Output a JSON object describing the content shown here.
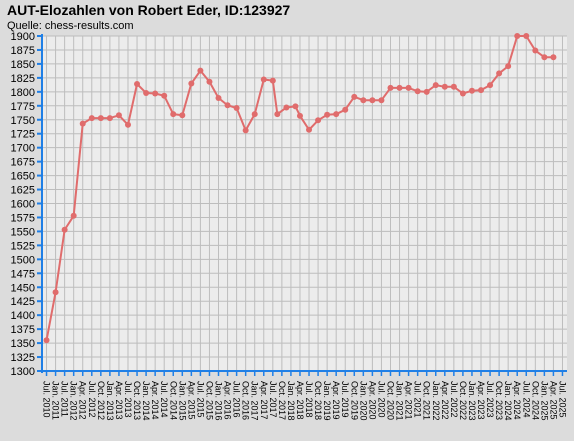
{
  "title": "AUT-Elozahlen von Robert Eder, ID:123927",
  "subtitle": "Quelle: chess-results.com",
  "colors": {
    "background": "#dcdcdc",
    "plot_background": "#ececec",
    "grid": "#bdbdbd",
    "axis": "#1f7fe6",
    "series": "#e06c6c"
  },
  "chart_data": {
    "type": "line",
    "title": "AUT-Elozahlen von Robert Eder, ID:123927",
    "xlabel": "",
    "ylabel": "",
    "ylim": [
      1300,
      1900
    ],
    "yticks": [
      1300,
      1325,
      1350,
      1375,
      1400,
      1425,
      1450,
      1475,
      1500,
      1525,
      1550,
      1575,
      1600,
      1625,
      1650,
      1675,
      1700,
      1725,
      1750,
      1775,
      1800,
      1825,
      1850,
      1875,
      1900
    ],
    "grid": true,
    "categories": [
      "Jul. 2010",
      "Jan. 2011",
      "Jul. 2011",
      "Jan. 2012",
      "Apr. 2012",
      "Jul. 2012",
      "Oct. 2012",
      "Jan. 2013",
      "Apr. 2013",
      "Jul. 2013",
      "Oct. 2013",
      "Jan. 2014",
      "Apr. 2014",
      "Jul. 2014",
      "Oct. 2014",
      "Jan. 2015",
      "Apr. 2015",
      "Jul. 2015",
      "Oct. 2015",
      "Jan. 2016",
      "Apr. 2016",
      "Jul. 2016",
      "Oct. 2016",
      "Jan. 2017",
      "Apr. 2017",
      "Jul. 2017",
      "Oct. 2017",
      "Jan. 2018",
      "Apr. 2018",
      "Jul. 2018",
      "Oct. 2018",
      "Jan. 2019",
      "Apr. 2019",
      "Jul. 2019",
      "Oct. 2019",
      "Jan. 2020",
      "Apr. 2020",
      "Jul. 2020",
      "Oct. 2020",
      "Jan. 2021",
      "Apr. 2021",
      "Jul. 2021",
      "Oct. 2021",
      "Jan. 2022",
      "Apr. 2022",
      "Jul. 2022",
      "Oct. 2022",
      "Jan. 2023",
      "Apr. 2023",
      "Jul. 2023",
      "Oct. 2023",
      "Jan. 2024",
      "Apr. 2024",
      "Jul. 2024",
      "Oct. 2024",
      "Jan. 2025",
      "Apr. 2025",
      "Jul. 2025"
    ],
    "series": [
      {
        "name": "",
        "points": [
          {
            "slot": 0,
            "y": 1355
          },
          {
            "slot": 1,
            "y": 1441
          },
          {
            "slot": 2,
            "y": 1553
          },
          {
            "slot": 3,
            "y": 1578
          },
          {
            "slot": 4,
            "y": 1743
          },
          {
            "slot": 5,
            "y": 1753
          },
          {
            "slot": 6,
            "y": 1753
          },
          {
            "slot": 7,
            "y": 1753
          },
          {
            "slot": 8,
            "y": 1758
          },
          {
            "slot": 9,
            "y": 1741
          },
          {
            "slot": 10,
            "y": 1814
          },
          {
            "slot": 11,
            "y": 1798
          },
          {
            "slot": 12,
            "y": 1797
          },
          {
            "slot": 13,
            "y": 1793
          },
          {
            "slot": 14,
            "y": 1760
          },
          {
            "slot": 15,
            "y": 1758
          },
          {
            "slot": 16,
            "y": 1815
          },
          {
            "slot": 17,
            "y": 1838
          },
          {
            "slot": 18,
            "y": 1818
          },
          {
            "slot": 19,
            "y": 1789
          },
          {
            "slot": 20,
            "y": 1776
          },
          {
            "slot": 21,
            "y": 1771
          },
          {
            "slot": 22,
            "y": 1731
          },
          {
            "slot": 23,
            "y": 1760
          },
          {
            "slot": 24,
            "y": 1822
          },
          {
            "slot": 25,
            "y": 1820
          },
          {
            "slot": 25.5,
            "y": 1760
          },
          {
            "slot": 26.5,
            "y": 1772
          },
          {
            "slot": 27.5,
            "y": 1774
          },
          {
            "slot": 28,
            "y": 1757
          },
          {
            "slot": 29,
            "y": 1732
          },
          {
            "slot": 30,
            "y": 1749
          },
          {
            "slot": 31,
            "y": 1759
          },
          {
            "slot": 32,
            "y": 1760
          },
          {
            "slot": 33,
            "y": 1768
          },
          {
            "slot": 34,
            "y": 1791
          },
          {
            "slot": 35,
            "y": 1785
          },
          {
            "slot": 36,
            "y": 1785
          },
          {
            "slot": 37,
            "y": 1785
          },
          {
            "slot": 38,
            "y": 1807
          },
          {
            "slot": 39,
            "y": 1807
          },
          {
            "slot": 40,
            "y": 1807
          },
          {
            "slot": 41,
            "y": 1801
          },
          {
            "slot": 42,
            "y": 1800
          },
          {
            "slot": 43,
            "y": 1812
          },
          {
            "slot": 44,
            "y": 1809
          },
          {
            "slot": 45,
            "y": 1809
          },
          {
            "slot": 46,
            "y": 1797
          },
          {
            "slot": 47,
            "y": 1802
          },
          {
            "slot": 48,
            "y": 1803
          },
          {
            "slot": 49,
            "y": 1812
          },
          {
            "slot": 50,
            "y": 1833
          },
          {
            "slot": 51,
            "y": 1846
          },
          {
            "slot": 52,
            "y": 1900
          },
          {
            "slot": 53,
            "y": 1900
          },
          {
            "slot": 54,
            "y": 1874
          },
          {
            "slot": 55,
            "y": 1862
          },
          {
            "slot": 56,
            "y": 1862
          }
        ]
      }
    ]
  }
}
